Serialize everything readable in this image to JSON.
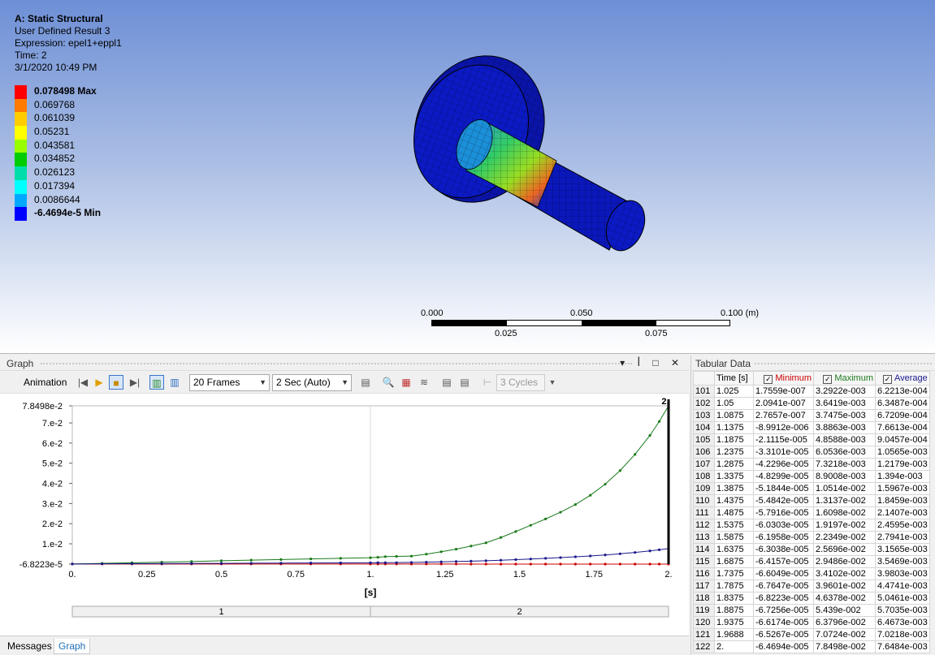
{
  "viewport": {
    "title": "A: Static Structural",
    "result_name": "User Defined Result 3",
    "expression": "Expression: epel1+eppl1",
    "time": "Time: 2",
    "date": "3/1/2020 10:49 PM",
    "legend": [
      {
        "label": "0.078498 Max",
        "color": "#ff0000",
        "bold": true
      },
      {
        "label": "0.069768",
        "color": "#ff7a00"
      },
      {
        "label": "0.061039",
        "color": "#ffcc00"
      },
      {
        "label": "0.05231",
        "color": "#ffff00"
      },
      {
        "label": "0.043581",
        "color": "#99ff00"
      },
      {
        "label": "0.034852",
        "color": "#00cc00"
      },
      {
        "label": "0.026123",
        "color": "#00ddaa"
      },
      {
        "label": "0.017394",
        "color": "#00ffff"
      },
      {
        "label": "0.0086644",
        "color": "#00a8ff"
      },
      {
        "label": "-6.4694e-5 Min",
        "color": "#0000ff",
        "bold": true
      }
    ],
    "scale": {
      "l0": "0.000",
      "l1": "0.050",
      "l2": "0.100 (m)",
      "l3": "0.025",
      "l4": "0.075"
    }
  },
  "graph_panel": {
    "title": "Graph",
    "controls": "▾ ꟾ □ ✕",
    "animation_label": "Animation",
    "frames": "20 Frames",
    "duration": "2 Sec (Auto)",
    "cycles": "3 Cycles",
    "tabs": {
      "messages": "Messages",
      "graph": "Graph"
    }
  },
  "tabular": {
    "title": "Tabular Data",
    "headers": {
      "time": "Time [s]",
      "min": "Minimum",
      "max": "Maximum",
      "avg": "Average"
    },
    "rows": [
      [
        "101",
        "1.025",
        "1.7559e-007",
        "3.2922e-003",
        "6.2213e-004"
      ],
      [
        "102",
        "1.05",
        "2.0941e-007",
        "3.6419e-003",
        "6.3487e-004"
      ],
      [
        "103",
        "1.0875",
        "2.7657e-007",
        "3.7475e-003",
        "6.7209e-004"
      ],
      [
        "104",
        "1.1375",
        "-8.9912e-006",
        "3.8863e-003",
        "7.6613e-004"
      ],
      [
        "105",
        "1.1875",
        "-2.1115e-005",
        "4.8588e-003",
        "9.0457e-004"
      ],
      [
        "106",
        "1.2375",
        "-3.3101e-005",
        "6.0536e-003",
        "1.0565e-003"
      ],
      [
        "107",
        "1.2875",
        "-4.2296e-005",
        "7.3218e-003",
        "1.2179e-003"
      ],
      [
        "108",
        "1.3375",
        "-4.8299e-005",
        "8.9008e-003",
        "1.394e-003"
      ],
      [
        "109",
        "1.3875",
        "-5.1844e-005",
        "1.0514e-002",
        "1.5967e-003"
      ],
      [
        "110",
        "1.4375",
        "-5.4842e-005",
        "1.3137e-002",
        "1.8459e-003"
      ],
      [
        "111",
        "1.4875",
        "-5.7916e-005",
        "1.6098e-002",
        "2.1407e-003"
      ],
      [
        "112",
        "1.5375",
        "-6.0303e-005",
        "1.9197e-002",
        "2.4595e-003"
      ],
      [
        "113",
        "1.5875",
        "-6.1958e-005",
        "2.2349e-002",
        "2.7941e-003"
      ],
      [
        "114",
        "1.6375",
        "-6.3038e-005",
        "2.5696e-002",
        "3.1565e-003"
      ],
      [
        "115",
        "1.6875",
        "-6.4157e-005",
        "2.9486e-002",
        "3.5469e-003"
      ],
      [
        "116",
        "1.7375",
        "-6.6049e-005",
        "3.4102e-002",
        "3.9803e-003"
      ],
      [
        "117",
        "1.7875",
        "-6.7647e-005",
        "3.9601e-002",
        "4.4741e-003"
      ],
      [
        "118",
        "1.8375",
        "-6.8223e-005",
        "4.6378e-002",
        "5.0461e-003"
      ],
      [
        "119",
        "1.8875",
        "-6.7256e-005",
        "5.439e-002",
        "5.7035e-003"
      ],
      [
        "120",
        "1.9375",
        "-6.6174e-005",
        "6.3796e-002",
        "6.4673e-003"
      ],
      [
        "121",
        "1.9688",
        "-6.5267e-005",
        "7.0724e-002",
        "7.0218e-003"
      ],
      [
        "122",
        "2.",
        "-6.4694e-005",
        "7.8498e-002",
        "7.6484e-003"
      ]
    ]
  },
  "colors": {
    "min": "#cc0000",
    "max": "#1a7a1a",
    "avg": "#1a1a8c"
  },
  "chart_data": {
    "type": "line",
    "xlabel": "[s]",
    "xlim": [
      0,
      2
    ],
    "ylim": [
      -6.8223e-05,
      0.078498
    ],
    "x_ticks": [
      "0.",
      "0.25",
      "0.5",
      "0.75",
      "1.",
      "1.25",
      "1.5",
      "1.75",
      "2."
    ],
    "y_ticks": [
      "7.8498e-2",
      "7.e-2",
      "6.e-2",
      "5.e-2",
      "4.e-2",
      "3.e-2",
      "2.e-2",
      "1.e-2",
      "-6.8223e-5"
    ],
    "y_tick_values": [
      0.078498,
      0.07,
      0.06,
      0.05,
      0.04,
      0.03,
      0.02,
      0.01,
      -6.8223e-05
    ],
    "cursor_label": "2.",
    "steps": [
      "1",
      "2"
    ],
    "x": [
      0.1,
      0.2,
      0.3,
      0.4,
      0.5,
      0.6,
      0.7,
      0.8,
      0.9,
      1.0,
      1.025,
      1.05,
      1.0875,
      1.1375,
      1.1875,
      1.2375,
      1.2875,
      1.3375,
      1.3875,
      1.4375,
      1.4875,
      1.5375,
      1.5875,
      1.6375,
      1.6875,
      1.7375,
      1.7875,
      1.8375,
      1.8875,
      1.9375,
      1.9688,
      2.0
    ],
    "series": [
      {
        "name": "Minimum",
        "values": [
          0,
          0,
          0,
          0,
          0,
          0,
          0,
          0,
          0,
          0,
          1.7559e-07,
          2.0941e-07,
          2.7657e-07,
          -8.9912e-06,
          -2.1115e-05,
          -3.3101e-05,
          -4.2296e-05,
          -4.8299e-05,
          -5.1844e-05,
          -5.4842e-05,
          -5.7916e-05,
          -6.0303e-05,
          -6.1958e-05,
          -6.3038e-05,
          -6.4157e-05,
          -6.6049e-05,
          -6.7647e-05,
          -6.8223e-05,
          -6.7256e-05,
          -6.6174e-05,
          -6.5267e-05,
          -6.4694e-05
        ]
      },
      {
        "name": "Maximum",
        "values": [
          0.0003,
          0.0006,
          0.0009,
          0.0012,
          0.0016,
          0.0019,
          0.0022,
          0.0025,
          0.0028,
          0.0031,
          0.0032922,
          0.0036419,
          0.0037475,
          0.0038863,
          0.0048588,
          0.0060536,
          0.0073218,
          0.0089008,
          0.010514,
          0.013137,
          0.016098,
          0.019197,
          0.022349,
          0.025696,
          0.029486,
          0.034102,
          0.039601,
          0.046378,
          0.05439,
          0.063796,
          0.070724,
          0.078498
        ]
      },
      {
        "name": "Average",
        "values": [
          6e-05,
          0.00012,
          0.00018,
          0.00024,
          0.0003,
          0.00036,
          0.00042,
          0.00048,
          0.00054,
          0.0006,
          0.00062213,
          0.00063487,
          0.00067209,
          0.00076613,
          0.00090457,
          0.0010565,
          0.0012179,
          0.001394,
          0.0015967,
          0.0018459,
          0.0021407,
          0.0024595,
          0.0027941,
          0.0031565,
          0.0035469,
          0.0039803,
          0.0044741,
          0.0050461,
          0.0057035,
          0.0064673,
          0.0070218,
          0.0076484
        ]
      }
    ]
  }
}
